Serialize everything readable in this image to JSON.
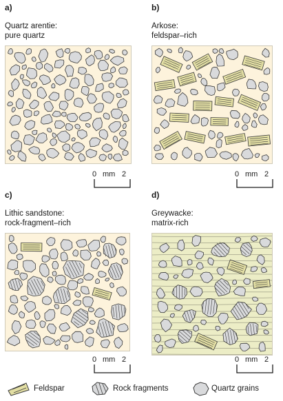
{
  "panels": [
    {
      "letter": "a)",
      "line1": "Quartz arentie:",
      "line2": "pure quartz",
      "background": "#fdf3dc",
      "feldspar": 0,
      "rock_fragments": 0,
      "matrix": false
    },
    {
      "letter": "b)",
      "line1": "Arkose:",
      "line2": "feldspar–rich",
      "background": "#fdf3dc",
      "feldspar": 15,
      "rock_fragments": 0,
      "matrix": false
    },
    {
      "letter": "c)",
      "line1": "Lithic sandstone:",
      "line2": "rock-fragment–rich",
      "background": "#fdf3dc",
      "feldspar": 2,
      "rock_fragments": 10,
      "matrix": false
    },
    {
      "letter": "d)",
      "line1": "Greywacke:",
      "line2": "matrix-rich",
      "background": "#ecedc6",
      "feldspar": 3,
      "rock_fragments": 10,
      "matrix": true
    }
  ],
  "scale": {
    "start": "0",
    "unit": "mm",
    "end": "2"
  },
  "legend": [
    {
      "icon": "feldspar-icon",
      "label": "Feldspar"
    },
    {
      "icon": "rock-fragment-icon",
      "label": "Rock fragments"
    },
    {
      "icon": "quartz-grain-icon",
      "label": "Quartz grains"
    }
  ],
  "colors": {
    "quartz": "#d9dadc",
    "feldspar": "#e3dfa4",
    "outline": "#3a3a3a",
    "background": "#fdf3dc",
    "matrix": "#ecedc6"
  }
}
